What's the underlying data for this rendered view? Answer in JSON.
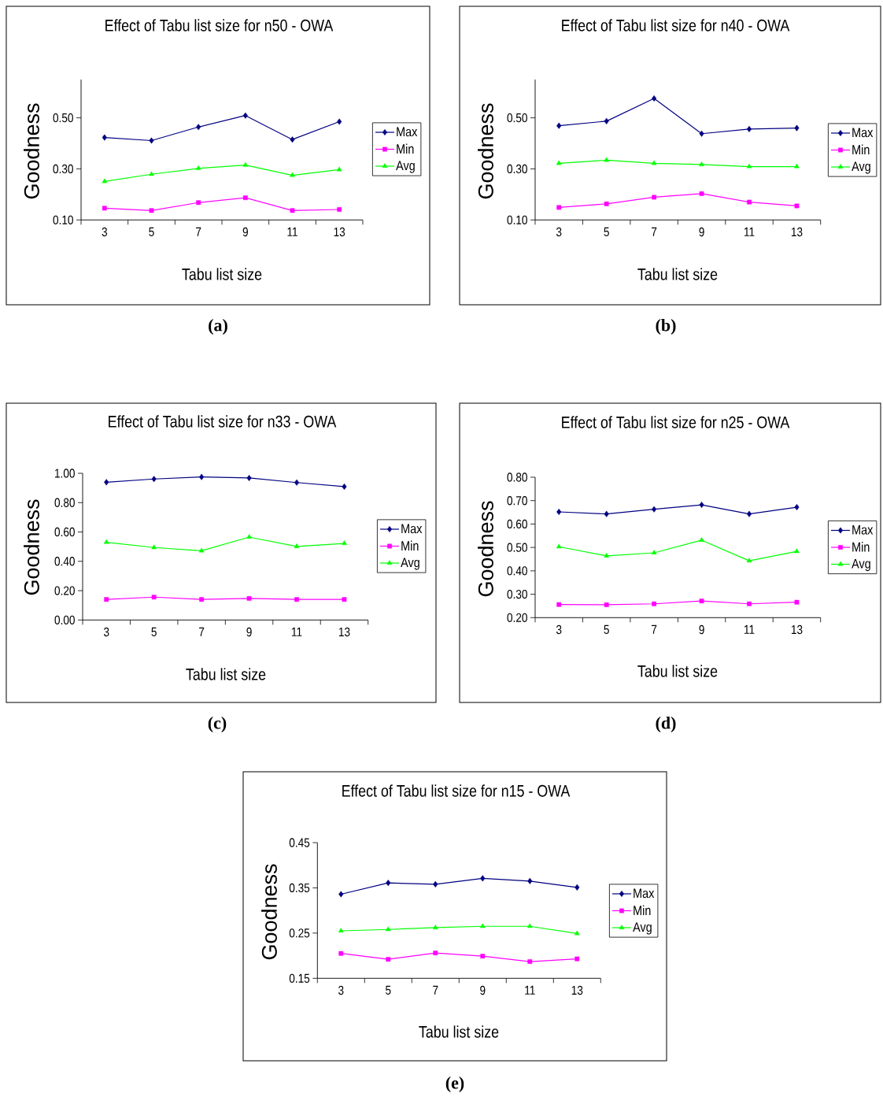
{
  "chart_data": [
    {
      "type": "line",
      "title": "Effect of Tabu list size for n50 - OWA",
      "xlabel": "Tabu list size",
      "ylabel": "Goodness",
      "categories": [
        "3",
        "5",
        "7",
        "9",
        "11",
        "13"
      ],
      "series": [
        {
          "name": "Max",
          "color": "#000080",
          "marker": "diamond",
          "values": [
            0.423,
            0.411,
            0.464,
            0.509,
            0.415,
            0.485
          ]
        },
        {
          "name": "Min",
          "color": "#ff00ff",
          "marker": "square",
          "values": [
            0.146,
            0.137,
            0.168,
            0.187,
            0.137,
            0.141
          ]
        },
        {
          "name": "Avg",
          "color": "#00ff00",
          "marker": "triangle",
          "values": [
            0.251,
            0.279,
            0.302,
            0.315,
            0.275,
            0.297
          ]
        }
      ],
      "ylim": [
        0.1,
        0.65
      ],
      "yticks": [
        {
          "value": 0.1,
          "label": "0.10"
        },
        {
          "value": 0.3,
          "label": "0.30"
        },
        {
          "value": 0.5,
          "label": "0.50"
        }
      ],
      "legend": "right",
      "annotations": [
        "(a)"
      ]
    },
    {
      "type": "line",
      "title": "Effect of Tabu list size for n40 - OWA",
      "xlabel": "Tabu list size",
      "ylabel": "Goodness",
      "categories": [
        "3",
        "5",
        "7",
        "9",
        "11",
        "13"
      ],
      "series": [
        {
          "name": "Max",
          "color": "#000080",
          "marker": "diamond",
          "values": [
            0.469,
            0.487,
            0.576,
            0.438,
            0.456,
            0.46
          ]
        },
        {
          "name": "Min",
          "color": "#ff00ff",
          "marker": "square",
          "values": [
            0.149,
            0.163,
            0.189,
            0.203,
            0.17,
            0.155
          ]
        },
        {
          "name": "Avg",
          "color": "#00ff00",
          "marker": "triangle",
          "values": [
            0.322,
            0.334,
            0.322,
            0.317,
            0.309,
            0.309
          ]
        }
      ],
      "ylim": [
        0.1,
        0.65
      ],
      "yticks": [
        {
          "value": 0.1,
          "label": "0.10"
        },
        {
          "value": 0.3,
          "label": "0.30"
        },
        {
          "value": 0.5,
          "label": "0.50"
        }
      ],
      "legend": "right",
      "annotations": [
        "(b)"
      ]
    },
    {
      "type": "line",
      "title": "Effect of Tabu list size for n33 - OWA",
      "xlabel": "Tabu list size",
      "ylabel": "Goodness",
      "categories": [
        "3",
        "5",
        "7",
        "9",
        "11",
        "13"
      ],
      "series": [
        {
          "name": "Max",
          "color": "#000080",
          "marker": "diamond",
          "values": [
            0.939,
            0.961,
            0.975,
            0.968,
            0.937,
            0.909
          ]
        },
        {
          "name": "Min",
          "color": "#ff00ff",
          "marker": "square",
          "values": [
            0.14,
            0.156,
            0.14,
            0.147,
            0.14,
            0.14
          ]
        },
        {
          "name": "Avg",
          "color": "#00ff00",
          "marker": "triangle",
          "values": [
            0.53,
            0.494,
            0.472,
            0.565,
            0.501,
            0.522
          ]
        }
      ],
      "ylim": [
        0,
        1
      ],
      "yticks": [
        {
          "value": 0,
          "label": "0.00"
        },
        {
          "value": 0.2,
          "label": "0.20"
        },
        {
          "value": 0.4,
          "label": "0.40"
        },
        {
          "value": 0.6,
          "label": "0.60"
        },
        {
          "value": 0.8,
          "label": "0.80"
        },
        {
          "value": 1,
          "label": "1.00"
        }
      ],
      "legend": "right",
      "annotations": [
        "(c)"
      ]
    },
    {
      "type": "line",
      "title": "Effect of Tabu list size for n25 - OWA",
      "xlabel": "Tabu list size",
      "ylabel": "Goodness",
      "categories": [
        "3",
        "5",
        "7",
        "9",
        "11",
        "13"
      ],
      "series": [
        {
          "name": "Max",
          "color": "#000080",
          "marker": "diamond",
          "values": [
            0.652,
            0.643,
            0.663,
            0.682,
            0.643,
            0.672
          ]
        },
        {
          "name": "Min",
          "color": "#ff00ff",
          "marker": "square",
          "values": [
            0.256,
            0.255,
            0.259,
            0.271,
            0.259,
            0.266
          ]
        },
        {
          "name": "Avg",
          "color": "#00ff00",
          "marker": "triangle",
          "values": [
            0.503,
            0.464,
            0.477,
            0.531,
            0.443,
            0.483
          ]
        }
      ],
      "ylim": [
        0.2,
        0.8
      ],
      "yticks": [
        {
          "value": 0.2,
          "label": "0.20"
        },
        {
          "value": 0.3,
          "label": "0.30"
        },
        {
          "value": 0.4,
          "label": "0.40"
        },
        {
          "value": 0.5,
          "label": "0.50"
        },
        {
          "value": 0.6,
          "label": "0.60"
        },
        {
          "value": 0.7,
          "label": "0.70"
        },
        {
          "value": 0.8,
          "label": "0.80"
        }
      ],
      "legend": "right",
      "annotations": [
        "(d)"
      ]
    },
    {
      "type": "line",
      "title": "Effect of Tabu list size for n15 - OWA",
      "xlabel": "Tabu list size",
      "ylabel": "Goodness",
      "categories": [
        "3",
        "5",
        "7",
        "9",
        "11",
        "13"
      ],
      "series": [
        {
          "name": "Max",
          "color": "#000080",
          "marker": "diamond",
          "values": [
            0.336,
            0.361,
            0.358,
            0.371,
            0.365,
            0.351
          ]
        },
        {
          "name": "Min",
          "color": "#ff00ff",
          "marker": "square",
          "values": [
            0.205,
            0.192,
            0.206,
            0.199,
            0.187,
            0.193
          ]
        },
        {
          "name": "Avg",
          "color": "#00ff00",
          "marker": "triangle",
          "values": [
            0.255,
            0.258,
            0.262,
            0.265,
            0.265,
            0.249
          ]
        }
      ],
      "ylim": [
        0.15,
        0.45
      ],
      "yticks": [
        {
          "value": 0.15,
          "label": "0.15"
        },
        {
          "value": 0.25,
          "label": "0.25"
        },
        {
          "value": 0.35,
          "label": "0.35"
        },
        {
          "value": 0.45,
          "label": "0.45"
        }
      ],
      "legend": "right",
      "annotations": [
        "(e)"
      ]
    }
  ]
}
